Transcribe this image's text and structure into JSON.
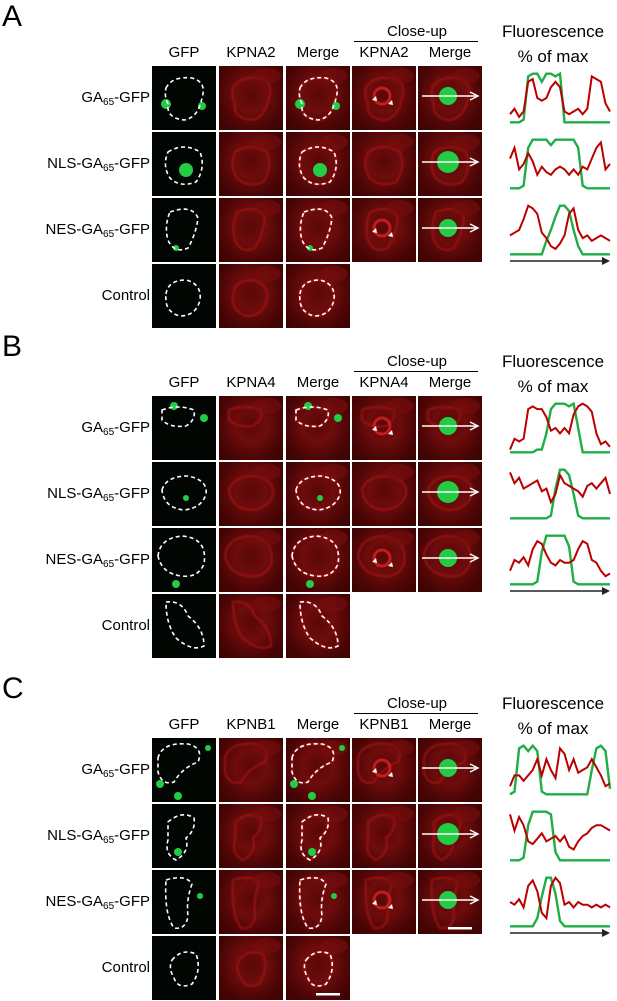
{
  "panels": [
    {
      "label": "A",
      "channels": [
        "GFP",
        "KPNA2",
        "Merge"
      ],
      "closeup": {
        "title": "Close-up",
        "channels": [
          "KPNA2",
          "Merge"
        ]
      },
      "profile_title": [
        "Fluorescence",
        "% of max"
      ],
      "rows": [
        {
          "prefix": "GA",
          "sub": "65",
          "suffix": "-GFP"
        },
        {
          "prefix": "NLS-GA",
          "sub": "65",
          "suffix": "-GFP"
        },
        {
          "prefix": "NES-GA",
          "sub": "65",
          "suffix": "-GFP"
        },
        {
          "prefix": "Control",
          "sub": "",
          "suffix": ""
        }
      ]
    },
    {
      "label": "B",
      "channels": [
        "GFP",
        "KPNA4",
        "Merge"
      ],
      "closeup": {
        "title": "Close-up",
        "channels": [
          "KPNA4",
          "Merge"
        ]
      },
      "profile_title": [
        "Fluorescence",
        "% of max"
      ],
      "rows": [
        {
          "prefix": "GA",
          "sub": "65",
          "suffix": "-GFP"
        },
        {
          "prefix": "NLS-GA",
          "sub": "65",
          "suffix": "-GFP"
        },
        {
          "prefix": "NES-GA",
          "sub": "65",
          "suffix": "-GFP"
        },
        {
          "prefix": "Control",
          "sub": "",
          "suffix": ""
        }
      ]
    },
    {
      "label": "C",
      "channels": [
        "GFP",
        "KPNB1",
        "Merge"
      ],
      "closeup": {
        "title": "Close-up",
        "channels": [
          "KPNB1",
          "Merge"
        ]
      },
      "profile_title": [
        "Fluorescence",
        "% of max"
      ],
      "rows": [
        {
          "prefix": "GA",
          "sub": "65",
          "suffix": "-GFP"
        },
        {
          "prefix": "NLS-GA",
          "sub": "65",
          "suffix": "-GFP"
        },
        {
          "prefix": "NES-GA",
          "sub": "65",
          "suffix": "-GFP"
        },
        {
          "prefix": "Control",
          "sub": "",
          "suffix": ""
        }
      ]
    }
  ],
  "colors": {
    "gfp": "#22cc44",
    "red_channel": "#cc1111",
    "profile_red": "#bb0000",
    "profile_green": "#1fae45"
  }
}
